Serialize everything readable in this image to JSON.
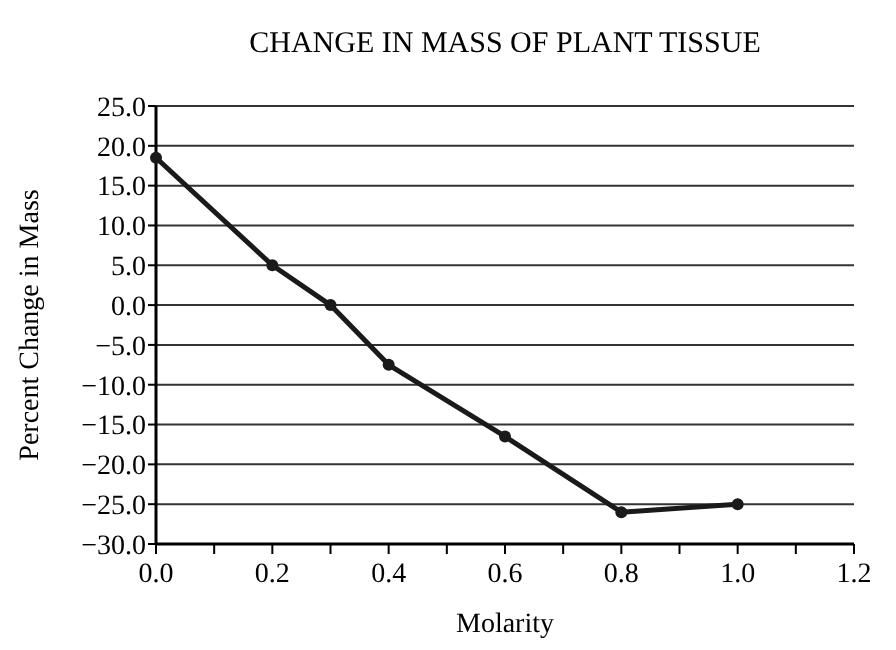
{
  "chart_data": {
    "type": "line",
    "title": "CHANGE IN MASS OF PLANT TISSUE",
    "xlabel": "Molarity",
    "ylabel": "Percent Change in Mass",
    "x": [
      0,
      0.2,
      0.3,
      0.4,
      0.6,
      0.8,
      1.0
    ],
    "series": [
      {
        "color": "#1a1a1a",
        "values": [
          18.5,
          5,
          0,
          -7.5,
          -16.5,
          -26,
          -25
        ]
      }
    ],
    "xlim": [
      0,
      1.2
    ],
    "xticks": [
      {
        "value": 0,
        "label": "0.0"
      },
      {
        "value": 0.1,
        "label": null
      },
      {
        "value": 0.2,
        "label": "0.2"
      },
      {
        "value": 0.3,
        "label": null
      },
      {
        "value": 0.4,
        "label": "0.4"
      },
      {
        "value": 0.5,
        "label": null
      },
      {
        "value": 0.6,
        "label": "0.6"
      },
      {
        "value": 0.7,
        "label": null
      },
      {
        "value": 0.8,
        "label": "0.8"
      },
      {
        "value": 0.9,
        "label": null
      },
      {
        "value": 1.0,
        "label": "1.0"
      },
      {
        "value": 1.1,
        "label": null
      },
      {
        "value": 1.2,
        "label": "1.2"
      }
    ],
    "ylim": [
      -30,
      25
    ],
    "yticks": [
      {
        "value": -30,
        "label": "−30.0"
      },
      {
        "value": -25,
        "label": "−25.0"
      },
      {
        "value": -20,
        "label": "−20.0"
      },
      {
        "value": -15,
        "label": "−15.0"
      },
      {
        "value": -10,
        "label": "−10.0"
      },
      {
        "value": -5,
        "label": "−5.0"
      },
      {
        "value": 0,
        "label": "0.0"
      },
      {
        "value": 5,
        "label": "5.0"
      },
      {
        "value": 10,
        "label": "10.0"
      },
      {
        "value": 15,
        "label": "15.0"
      },
      {
        "value": 20,
        "label": "20.0"
      },
      {
        "value": 25,
        "label": "25.0"
      }
    ],
    "grid": "y",
    "marker": "circle",
    "line_style": "solid"
  }
}
